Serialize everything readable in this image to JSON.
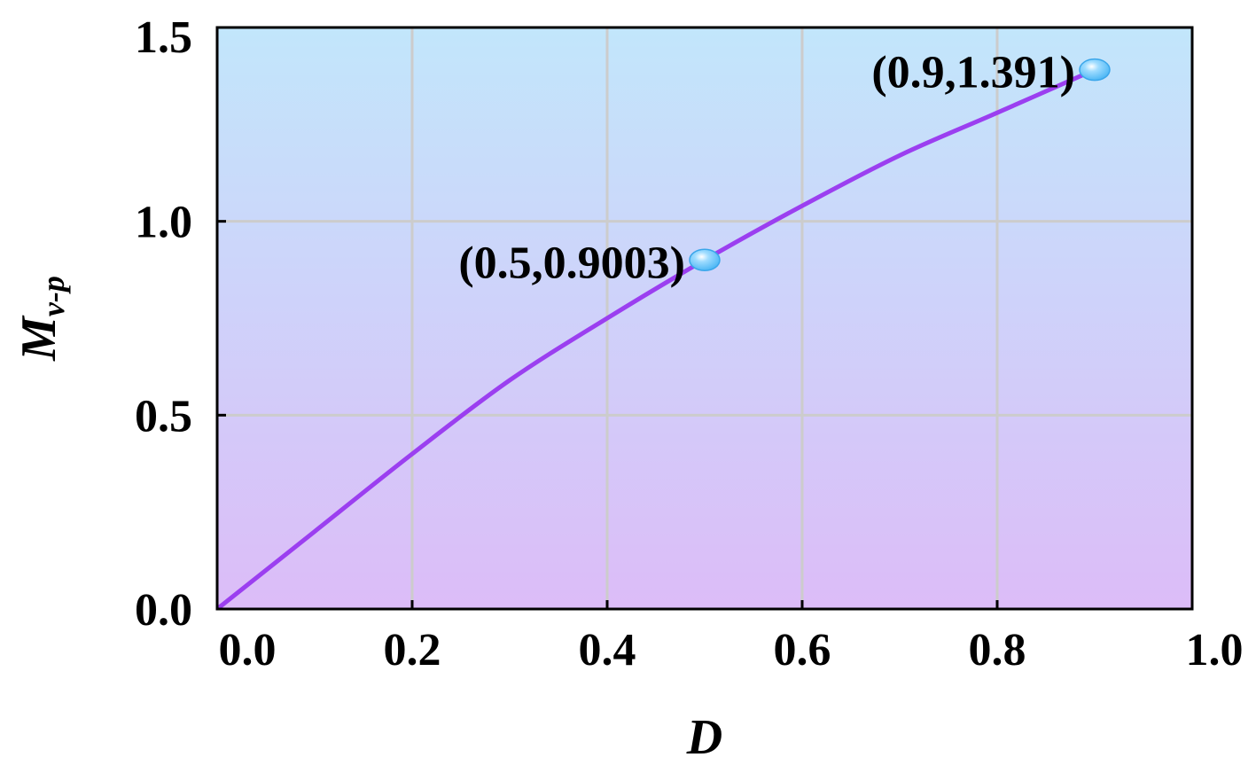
{
  "chart_data": {
    "type": "line",
    "xlabel": "D",
    "ylabel_main": "M",
    "ylabel_sub": "v-p",
    "xlim": [
      0,
      1
    ],
    "ylim": [
      0,
      1.5
    ],
    "x_ticks": [
      "0.0",
      "0.2",
      "0.4",
      "0.6",
      "0.8",
      "1.0"
    ],
    "x_tick_values": [
      0,
      0.2,
      0.4,
      0.6,
      0.8,
      1.0
    ],
    "y_ticks": [
      "0.0",
      "0.5",
      "1.0",
      "1.5"
    ],
    "y_tick_values": [
      0,
      0.5,
      1.0,
      1.5
    ],
    "grid": true,
    "series": [
      {
        "color": "#9b3ff0",
        "x": [
          0,
          0.1,
          0.2,
          0.3,
          0.4,
          0.5,
          0.6,
          0.7,
          0.8,
          0.9
        ],
        "y": [
          0,
          0.2,
          0.4,
          0.59,
          0.75,
          0.9003,
          1.04,
          1.17,
          1.28,
          1.391
        ]
      }
    ],
    "points": [
      {
        "x": 0.5,
        "y": 0.9003,
        "label": "(0.5,0.9003)"
      },
      {
        "x": 0.9,
        "y": 1.391,
        "label": "(0.9,1.391)"
      }
    ],
    "colors": {
      "background_top": "#c2e6fb",
      "background_bottom": "#dcbcf8",
      "grid": "#cccccc",
      "line": "#9b3ff0",
      "marker": "#4fb8f5"
    }
  }
}
